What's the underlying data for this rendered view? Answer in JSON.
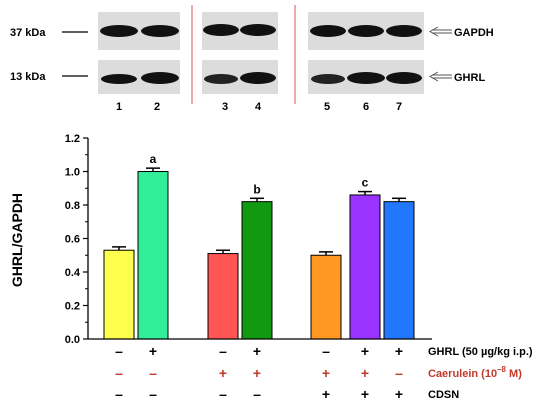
{
  "blot": {
    "markers": [
      {
        "label": "37 kDa"
      },
      {
        "label": "13 kDa"
      }
    ],
    "bands": [
      {
        "label": "GAPDH"
      },
      {
        "label": "GHRL"
      }
    ],
    "lane_labels": [
      "1",
      "2",
      "3",
      "4",
      "5",
      "6",
      "7"
    ]
  },
  "chart_data": {
    "type": "bar",
    "ylabel": "GHRL/GAPDH",
    "ylim": [
      0.0,
      1.2
    ],
    "yticks": [
      "0.0",
      "0.2",
      "0.4",
      "0.6",
      "0.8",
      "1.0",
      "1.2"
    ],
    "grid": false,
    "bars": [
      {
        "value": 0.53,
        "error": 0.02,
        "color": "#ffff4d",
        "letter": ""
      },
      {
        "value": 1.0,
        "error": 0.02,
        "color": "#33ee99",
        "letter": "a"
      },
      {
        "value": 0.51,
        "error": 0.02,
        "color": "#ff5555",
        "letter": ""
      },
      {
        "value": 0.82,
        "error": 0.02,
        "color": "#119911",
        "letter": "b"
      },
      {
        "value": 0.5,
        "error": 0.02,
        "color": "#ff9922",
        "letter": ""
      },
      {
        "value": 0.86,
        "error": 0.02,
        "color": "#9933ff",
        "letter": "c"
      },
      {
        "value": 0.82,
        "error": 0.02,
        "color": "#2277ff",
        "letter": ""
      }
    ],
    "treatments": [
      {
        "label": "GHRL (50 µg/kg i.p.)",
        "color": "#000000",
        "signs": [
          "–",
          "+",
          "–",
          "+",
          "–",
          "+",
          "+"
        ]
      },
      {
        "label_main": "Caerulein (10",
        "label_sup": "–8",
        "label_end": " M)",
        "color": "#c0392b",
        "signs": [
          "–",
          "–",
          "+",
          "+",
          "+",
          "+",
          "–"
        ]
      },
      {
        "label": "CDSN",
        "color": "#000000",
        "signs": [
          "–",
          "–",
          "–",
          "–",
          "+",
          "+",
          "+"
        ]
      }
    ]
  }
}
